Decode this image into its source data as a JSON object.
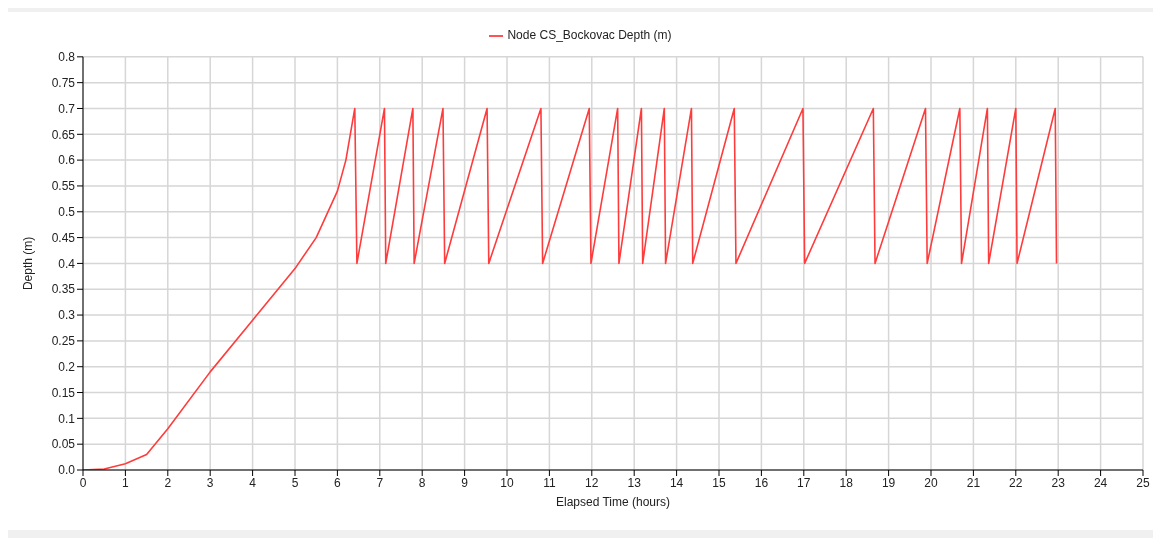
{
  "chart_data": {
    "type": "line",
    "xlabel": "Elapsed Time (hours)",
    "ylabel": "Depth (m)",
    "xlim": [
      0,
      25
    ],
    "xticks": [
      0,
      1,
      2,
      3,
      4,
      5,
      6,
      7,
      8,
      9,
      10,
      11,
      12,
      13,
      14,
      15,
      16,
      17,
      18,
      19,
      20,
      21,
      22,
      23,
      24,
      25
    ],
    "ylim": [
      0,
      0.8
    ],
    "yticks": [
      {
        "value": 0,
        "label": "0.0"
      },
      0.05,
      0.1,
      0.15,
      0.2,
      0.25,
      0.3,
      0.35,
      0.4,
      0.45,
      0.5,
      0.55,
      0.6,
      0.65,
      0.7,
      0.75,
      0.8
    ],
    "grid": true,
    "legend": "top",
    "series": [
      {
        "name": "Node CS_Bockovac Depth (m)",
        "color": "#ff3b3b",
        "x": [
          0,
          0.5,
          1,
          1.5,
          2,
          3,
          4,
          5,
          5.5,
          6,
          6.2,
          6.41,
          6.46,
          7.11,
          7.14,
          7.78,
          7.81,
          8.49,
          8.53,
          9.53,
          9.57,
          10.8,
          10.84,
          11.94,
          11.98,
          12.61,
          12.64,
          13.17,
          13.2,
          13.71,
          13.74,
          14.35,
          14.38,
          15.36,
          15.4,
          16.98,
          17.02,
          18.64,
          18.68,
          19.87,
          19.91,
          20.68,
          20.72,
          21.33,
          21.36,
          22,
          22.03,
          22.93,
          22.96
        ],
        "values": [
          0,
          0.002,
          0.012,
          0.03,
          0.08,
          0.19,
          0.29,
          0.39,
          0.45,
          0.54,
          0.6,
          0.7,
          0.4,
          0.7,
          0.4,
          0.7,
          0.4,
          0.7,
          0.4,
          0.7,
          0.4,
          0.7,
          0.4,
          0.7,
          0.4,
          0.7,
          0.4,
          0.7,
          0.4,
          0.7,
          0.4,
          0.7,
          0.4,
          0.7,
          0.4,
          0.7,
          0.4,
          0.7,
          0.4,
          0.7,
          0.4,
          0.7,
          0.4,
          0.7,
          0.4,
          0.7,
          0.4,
          0.7,
          0.4
        ]
      }
    ]
  }
}
